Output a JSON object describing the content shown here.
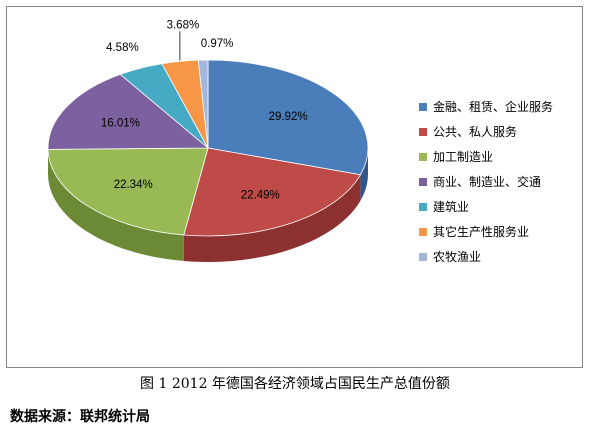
{
  "chart_data": {
    "type": "pie",
    "style": "3d",
    "title": "",
    "categories": [
      "金融、租赁、企业服务",
      "公共、私人服务",
      "加工制造业",
      "商业、制造业、交通",
      "建筑业",
      "其它生产性服务业",
      "农牧渔业"
    ],
    "values": [
      29.92,
      22.49,
      22.34,
      16.01,
      4.58,
      3.68,
      0.97
    ],
    "labels": [
      "29.92%",
      "22.49%",
      "22.34%",
      "16.01%",
      "4.58%",
      "3.68%",
      "0.97%"
    ],
    "unit": "%",
    "legend_position": "right",
    "colors": [
      "#4A7EBB",
      "#BE4B48",
      "#98B954",
      "#7D60A0",
      "#46AAC4",
      "#F79646",
      "#A5B6DB"
    ],
    "side_colors": [
      "#2F5789",
      "#8C3130",
      "#6C8A35",
      "#57407A",
      "#2E7F94",
      "#B86A2A",
      "#7A8CB4"
    ]
  },
  "caption": "图 1  2012 年德国各经济领域占国民生产总值份额",
  "source": "数据来源：联邦统计局"
}
